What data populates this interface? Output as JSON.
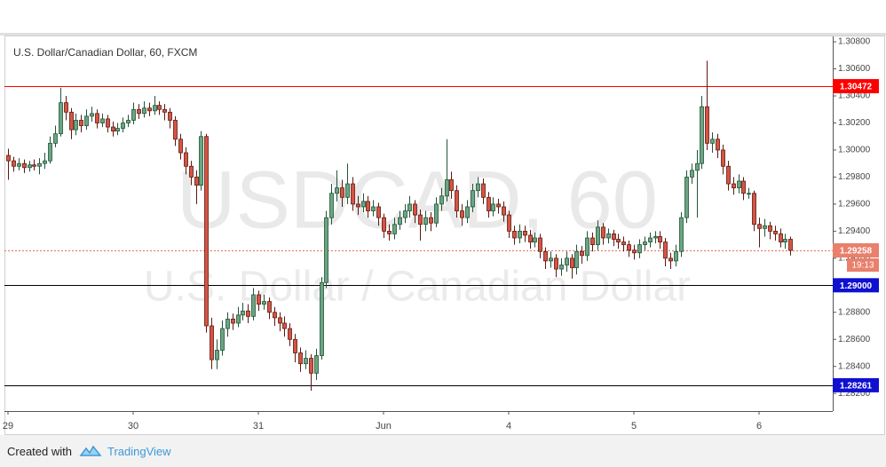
{
  "chart_data": {
    "type": "candlestick",
    "title": "U.S. Dollar/Canadian Dollar, 60, FXCM",
    "watermark": "USDCAD, 60",
    "watermark_subtitle": "U.S. Dollar / Canadian Dollar",
    "countdown": "19:13",
    "up_color": "#6ba583",
    "up_border": "#225437",
    "down_color": "#d75442",
    "down_border": "#5b1a13",
    "ylim": [
      1.2807,
      1.3084
    ],
    "yticks": [
      {
        "value": 1.282,
        "label": "1.28200"
      },
      {
        "value": 1.284,
        "label": "1.28400"
      },
      {
        "value": 1.286,
        "label": "1.28600"
      },
      {
        "value": 1.288,
        "label": "1.28800"
      },
      {
        "value": 1.29,
        "label": "1.29000"
      },
      {
        "value": 1.292,
        "label": "1.29200"
      },
      {
        "value": 1.294,
        "label": "1.29400"
      },
      {
        "value": 1.296,
        "label": "1.29600"
      },
      {
        "value": 1.298,
        "label": "1.29800"
      },
      {
        "value": 1.3,
        "label": "1.30000"
      },
      {
        "value": 1.302,
        "label": "1.30200"
      },
      {
        "value": 1.304,
        "label": "1.30400"
      },
      {
        "value": 1.306,
        "label": "1.30600"
      },
      {
        "value": 1.308,
        "label": "1.30800"
      }
    ],
    "grid": false,
    "lines": [
      {
        "value": 1.30472,
        "color": "#ff0000",
        "label_color": "#ff0000"
      },
      {
        "value": 1.29258,
        "color": "#e46e5c",
        "label_color": "#e8806c",
        "style": "dotted"
      },
      {
        "value": 1.29,
        "label": "1.29000",
        "color": "#000000",
        "label_color": "#1010d0"
      },
      {
        "value": 1.28261,
        "color": "#000000",
        "label_color": "#1010d0"
      }
    ],
    "categories": [
      "29",
      null,
      null,
      null,
      null,
      null,
      null,
      null,
      null,
      null,
      null,
      null,
      null,
      null,
      null,
      null,
      null,
      null,
      null,
      null,
      null,
      null,
      null,
      null,
      "30",
      null,
      null,
      null,
      null,
      null,
      null,
      null,
      null,
      null,
      null,
      null,
      null,
      null,
      null,
      null,
      null,
      null,
      null,
      null,
      null,
      null,
      null,
      null,
      "31",
      null,
      null,
      null,
      null,
      null,
      null,
      null,
      null,
      null,
      null,
      null,
      null,
      null,
      null,
      null,
      null,
      null,
      null,
      null,
      null,
      null,
      null,
      null,
      "Jun",
      null,
      null,
      null,
      null,
      null,
      null,
      null,
      null,
      null,
      null,
      null,
      null,
      null,
      null,
      null,
      null,
      null,
      null,
      null,
      null,
      null,
      null,
      null,
      "4",
      null,
      null,
      null,
      null,
      null,
      null,
      null,
      null,
      null,
      null,
      null,
      null,
      null,
      null,
      null,
      null,
      null,
      null,
      null,
      null,
      null,
      null,
      null,
      "5",
      null,
      null,
      null,
      null,
      null,
      null,
      null,
      null,
      null,
      null,
      null,
      null,
      null,
      null,
      null,
      null,
      null,
      null,
      null,
      null,
      null,
      null,
      null,
      "6",
      null,
      null,
      null,
      null,
      null,
      null
    ],
    "open": [
      1.2996,
      1.2992,
      1.2988,
      1.299,
      1.2987,
      1.2989,
      1.2988,
      1.299,
      1.2992,
      1.3005,
      1.3012,
      1.3035,
      1.3028,
      1.3015,
      1.3022,
      1.3018,
      1.3025,
      1.3027,
      1.302,
      1.3023,
      1.3017,
      1.3014,
      1.3016,
      1.302,
      1.3022,
      1.303,
      1.3027,
      1.3031,
      1.3029,
      1.3033,
      1.303,
      1.3028,
      1.3022,
      1.3008,
      1.2998,
      1.2988,
      1.298,
      1.2974,
      1.301,
      1.287,
      1.2845,
      1.2852,
      1.2868,
      1.2875,
      1.2872,
      1.2878,
      1.2881,
      1.2877,
      1.2893,
      1.2886,
      1.2888,
      1.288,
      1.2876,
      1.2872,
      1.2868,
      1.286,
      1.285,
      1.2842,
      1.2846,
      1.2835,
      1.2848,
      1.2902,
      1.295,
      1.2968,
      1.2972,
      1.2965,
      1.2975,
      1.296,
      1.2958,
      1.2962,
      1.2955,
      1.2958,
      1.295,
      1.294,
      1.2938,
      1.2945,
      1.295,
      1.2955,
      1.296,
      1.2952,
      1.2945,
      1.295,
      1.2946,
      1.296,
      1.2966,
      1.2978,
      1.297,
      1.2955,
      1.295,
      1.2958,
      1.297,
      1.2975,
      1.2965,
      1.2955,
      1.296,
      1.2958,
      1.2952,
      1.294,
      1.2935,
      1.294,
      1.2937,
      1.2932,
      1.2935,
      1.2925,
      1.2918,
      1.292,
      1.2912,
      1.2915,
      1.292,
      1.2913,
      1.2925,
      1.2922,
      1.2935,
      1.293,
      1.2943,
      1.2935,
      1.2938,
      1.2934,
      1.2932,
      1.293,
      1.2926,
      1.2924,
      1.293,
      1.2932,
      1.2935,
      1.2936,
      1.2932,
      1.292,
      1.2918,
      1.2925,
      1.295,
      1.298,
      1.2985,
      1.299,
      1.3032,
      1.3005,
      1.3008,
      1.3,
      1.2988,
      1.2975,
      1.2972,
      1.2977,
      1.2968,
      1.2968,
      1.2945,
      1.2942,
      1.2944,
      1.294,
      1.2938,
      1.2932,
      1.2934
    ],
    "high": [
      1.3001,
      1.2995,
      1.2994,
      1.2993,
      1.2992,
      1.2993,
      1.2994,
      1.2998,
      1.301,
      1.3018,
      1.3046,
      1.304,
      1.3031,
      1.3027,
      1.3026,
      1.303,
      1.3032,
      1.303,
      1.3027,
      1.3026,
      1.3021,
      1.302,
      1.3024,
      1.3026,
      1.3035,
      1.3034,
      1.3036,
      1.3035,
      1.304,
      1.3036,
      1.3034,
      1.3031,
      1.3025,
      1.3012,
      1.3002,
      1.2992,
      1.2985,
      1.3014,
      1.3012,
      1.2876,
      1.286,
      1.2874,
      1.288,
      1.2879,
      1.2884,
      1.2887,
      1.2886,
      1.2898,
      1.2896,
      1.2893,
      1.2891,
      1.2884,
      1.288,
      1.2877,
      1.2872,
      1.2864,
      1.2854,
      1.2852,
      1.2849,
      1.2853,
      1.2906,
      1.2955,
      1.2975,
      1.2985,
      1.2978,
      1.299,
      1.298,
      1.2966,
      1.2968,
      1.2966,
      1.2963,
      1.2961,
      1.2953,
      1.2945,
      1.295,
      1.2955,
      1.296,
      1.2966,
      1.2963,
      1.2956,
      1.2955,
      1.2954,
      1.2965,
      1.2972,
      1.3008,
      1.2984,
      1.2974,
      1.296,
      1.2963,
      1.2975,
      1.298,
      1.2979,
      1.2969,
      1.2965,
      1.2964,
      1.2962,
      1.2955,
      1.2944,
      1.2945,
      1.2944,
      1.2941,
      1.2939,
      1.2938,
      1.2928,
      1.2925,
      1.2923,
      1.292,
      1.2925,
      1.2923,
      1.293,
      1.2929,
      1.294,
      1.2939,
      1.2948,
      1.2946,
      1.2942,
      1.2941,
      1.2938,
      1.2936,
      1.2933,
      1.293,
      1.2934,
      1.2936,
      1.2939,
      1.294,
      1.294,
      1.2935,
      1.2924,
      1.293,
      1.2954,
      1.2985,
      1.299,
      1.3,
      1.304,
      1.3066,
      1.3013,
      1.3012,
      1.3004,
      1.2992,
      1.298,
      1.2982,
      1.298,
      1.2972,
      1.297,
      1.295,
      1.2949,
      1.2947,
      1.2944,
      1.2942,
      1.2938,
      1.2936
    ],
    "low": [
      1.2978,
      1.2984,
      1.2985,
      1.2983,
      1.2984,
      1.2985,
      1.2982,
      1.2986,
      1.299,
      1.3002,
      1.301,
      1.3022,
      1.3008,
      1.3011,
      1.3013,
      1.3015,
      1.3021,
      1.3016,
      1.3017,
      1.3013,
      1.301,
      1.3011,
      1.3013,
      1.3017,
      1.3019,
      1.3023,
      1.3024,
      1.3025,
      1.3026,
      1.3026,
      1.3022,
      1.3016,
      1.3003,
      1.2993,
      1.2982,
      1.2974,
      1.296,
      1.297,
      1.2865,
      1.2838,
      1.2838,
      1.2848,
      1.2862,
      1.2867,
      1.2869,
      1.2874,
      1.2872,
      1.2874,
      1.2881,
      1.2882,
      1.2875,
      1.287,
      1.2866,
      1.2862,
      1.2855,
      1.2843,
      1.2836,
      1.2838,
      1.2822,
      1.283,
      1.2845,
      1.2898,
      1.2945,
      1.2962,
      1.2958,
      1.296,
      1.2955,
      1.2952,
      1.2954,
      1.295,
      1.2951,
      1.2944,
      1.2935,
      1.2933,
      1.2934,
      1.2941,
      1.2946,
      1.295,
      1.2946,
      1.2933,
      1.294,
      1.294,
      1.2943,
      1.2955,
      1.2962,
      1.2964,
      1.295,
      1.2944,
      1.2946,
      1.2954,
      1.2965,
      1.296,
      1.295,
      1.2951,
      1.2953,
      1.2947,
      1.2935,
      1.293,
      1.2931,
      1.2932,
      1.2927,
      1.2928,
      1.292,
      1.2912,
      1.2913,
      1.2906,
      1.2907,
      1.291,
      1.2905,
      1.2908,
      1.2916,
      1.2918,
      1.2925,
      1.2926,
      1.293,
      1.2931,
      1.2929,
      1.2927,
      1.2925,
      1.2921,
      1.2919,
      1.292,
      1.2926,
      1.2928,
      1.2931,
      1.2927,
      1.2914,
      1.2912,
      1.2914,
      1.2921,
      1.2946,
      1.2975,
      1.295,
      1.2986,
      1.3,
      1.2998,
      1.2994,
      1.2982,
      1.297,
      1.2967,
      1.2968,
      1.2963,
      1.2964,
      1.294,
      1.2928,
      1.2936,
      1.2934,
      1.2933,
      1.2928,
      1.2927,
      1.2922
    ],
    "close": [
      1.2992,
      1.2988,
      1.299,
      1.2987,
      1.2989,
      1.2988,
      1.299,
      1.2992,
      1.3005,
      1.3012,
      1.3035,
      1.3028,
      1.3015,
      1.3022,
      1.3018,
      1.3025,
      1.3027,
      1.302,
      1.3023,
      1.3017,
      1.3014,
      1.3016,
      1.302,
      1.3022,
      1.303,
      1.3027,
      1.3031,
      1.3029,
      1.3033,
      1.303,
      1.3028,
      1.3022,
      1.3008,
      1.2998,
      1.2988,
      1.298,
      1.2974,
      1.301,
      1.287,
      1.2845,
      1.2852,
      1.2868,
      1.2875,
      1.2872,
      1.2878,
      1.2881,
      1.2877,
      1.2893,
      1.2886,
      1.2888,
      1.288,
      1.2876,
      1.2872,
      1.2868,
      1.286,
      1.285,
      1.2842,
      1.2846,
      1.2835,
      1.2848,
      1.2902,
      1.295,
      1.2968,
      1.2972,
      1.2965,
      1.2975,
      1.296,
      1.2958,
      1.2962,
      1.2955,
      1.2958,
      1.295,
      1.294,
      1.2938,
      1.2945,
      1.295,
      1.2955,
      1.296,
      1.2952,
      1.2945,
      1.295,
      1.2946,
      1.296,
      1.2966,
      1.2978,
      1.297,
      1.2955,
      1.295,
      1.2958,
      1.297,
      1.2975,
      1.2965,
      1.2955,
      1.296,
      1.2958,
      1.2952,
      1.294,
      1.2935,
      1.294,
      1.2937,
      1.2932,
      1.2935,
      1.2925,
      1.2918,
      1.292,
      1.2912,
      1.2915,
      1.292,
      1.2913,
      1.2925,
      1.2922,
      1.2935,
      1.293,
      1.2943,
      1.2935,
      1.2938,
      1.2934,
      1.2932,
      1.293,
      1.2926,
      1.2924,
      1.293,
      1.2932,
      1.2935,
      1.2936,
      1.2932,
      1.292,
      1.2918,
      1.2925,
      1.295,
      1.298,
      1.2985,
      1.299,
      1.3032,
      1.3005,
      1.3008,
      1.3,
      1.2988,
      1.2975,
      1.2972,
      1.2977,
      1.2968,
      1.2968,
      1.2945,
      1.2942,
      1.2944,
      1.294,
      1.2938,
      1.2932,
      1.2934,
      1.29258
    ]
  },
  "footer": {
    "created_with": "Created with",
    "brand": "TradingView"
  }
}
